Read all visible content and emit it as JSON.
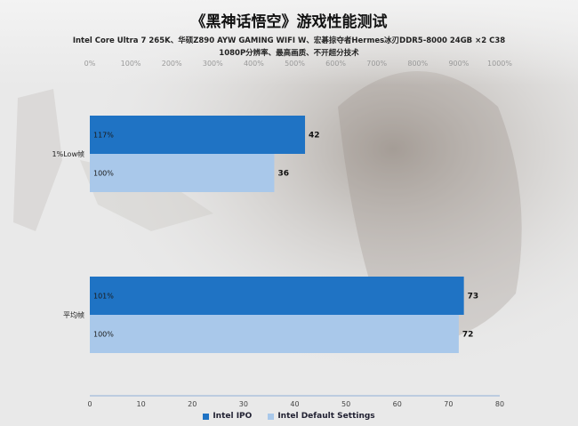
{
  "page": {
    "title": "《黑神话悟空》游戏性能测试",
    "subtitle_line1": "Intel Core Ultra 7 265K、华硕Z890 AYW GAMING WIFI W、宏碁掠夺者Hermes冰刃DDR5-8000 24GB ×2 C38",
    "subtitle_line2": "1080P分辨率、最高画质、不开超分技术"
  },
  "chart_data": {
    "type": "bar",
    "orientation": "horizontal",
    "title": "《黑神话悟空》游戏性能测试",
    "categories": [
      "1%Low帧",
      "平均帧"
    ],
    "series": [
      {
        "name": "Intel IPO",
        "values": [
          42,
          73
        ],
        "percent_labels": [
          "117%",
          "101%"
        ],
        "color": "#1f73c4"
      },
      {
        "name": "Intel Default Settings",
        "values": [
          36,
          72
        ],
        "percent_labels": [
          "100%",
          "100%"
        ],
        "color": "#a9c8ea"
      }
    ],
    "x_axis": {
      "min": 0,
      "max": 80,
      "ticks": [
        0,
        10,
        20,
        30,
        40,
        50,
        60,
        70,
        80
      ]
    },
    "top_axis": {
      "min": 0,
      "max": 1000,
      "ticks": [
        "0%",
        "100%",
        "200%",
        "300%",
        "400%",
        "500%",
        "600%",
        "700%",
        "800%",
        "900%",
        "1000%"
      ]
    },
    "legend_position": "bottom",
    "grid": false
  }
}
